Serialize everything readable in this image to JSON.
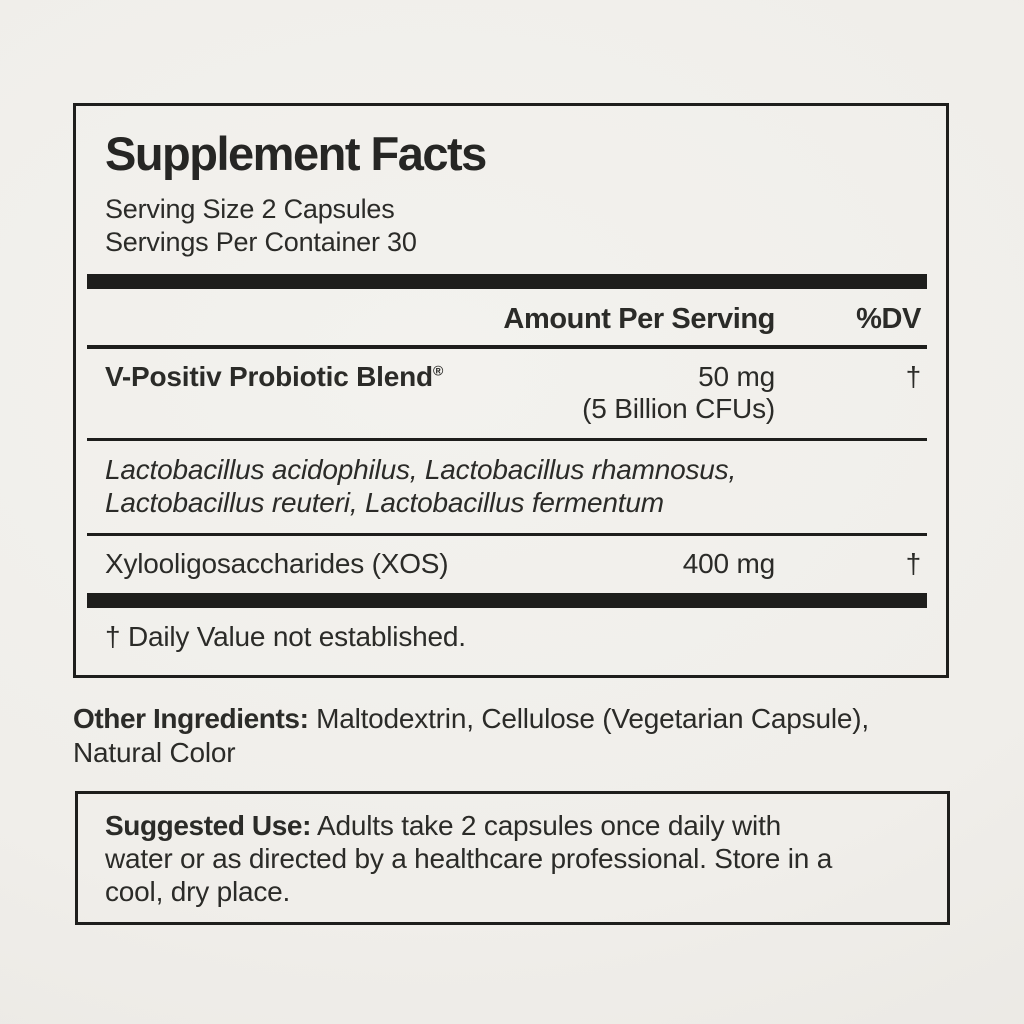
{
  "colors": {
    "background": "#f0eeea",
    "ink": "#2b2b28",
    "rule": "#1e1e1c"
  },
  "label": {
    "title": "Supplement Facts",
    "serving_size": "Serving Size 2 Capsules",
    "servings_per_container": "Servings Per Container 30",
    "columns": {
      "amount": "Amount Per Serving",
      "dv": "%DV"
    },
    "rows": {
      "probiotic": {
        "name": "V-Positiv Probiotic Blend",
        "trademark": "®",
        "amount": "50 mg",
        "amount_detail": "(5 Billion CFUs)",
        "dv": "†"
      },
      "species": {
        "line1": "Lactobacillus acidophilus, Lactobacillus rhamnosus,",
        "line2": "Lactobacillus reuteri, Lactobacillus fermentum"
      },
      "xos": {
        "name": "Xylooligosaccharides (XOS)",
        "amount": "400 mg",
        "dv": "†"
      }
    },
    "footnote": "† Daily Value not established."
  },
  "other_ingredients": {
    "label": "Other Ingredients:",
    "line1": " Maltodextrin, Cellulose (Vegetarian Capsule),",
    "line2": "Natural Color"
  },
  "suggested_use": {
    "label": "Suggested Use:",
    "line1": " Adults take 2 capsules once daily with",
    "line2": "water or as directed by a healthcare professional. Store in a",
    "line3": "cool, dry place."
  }
}
